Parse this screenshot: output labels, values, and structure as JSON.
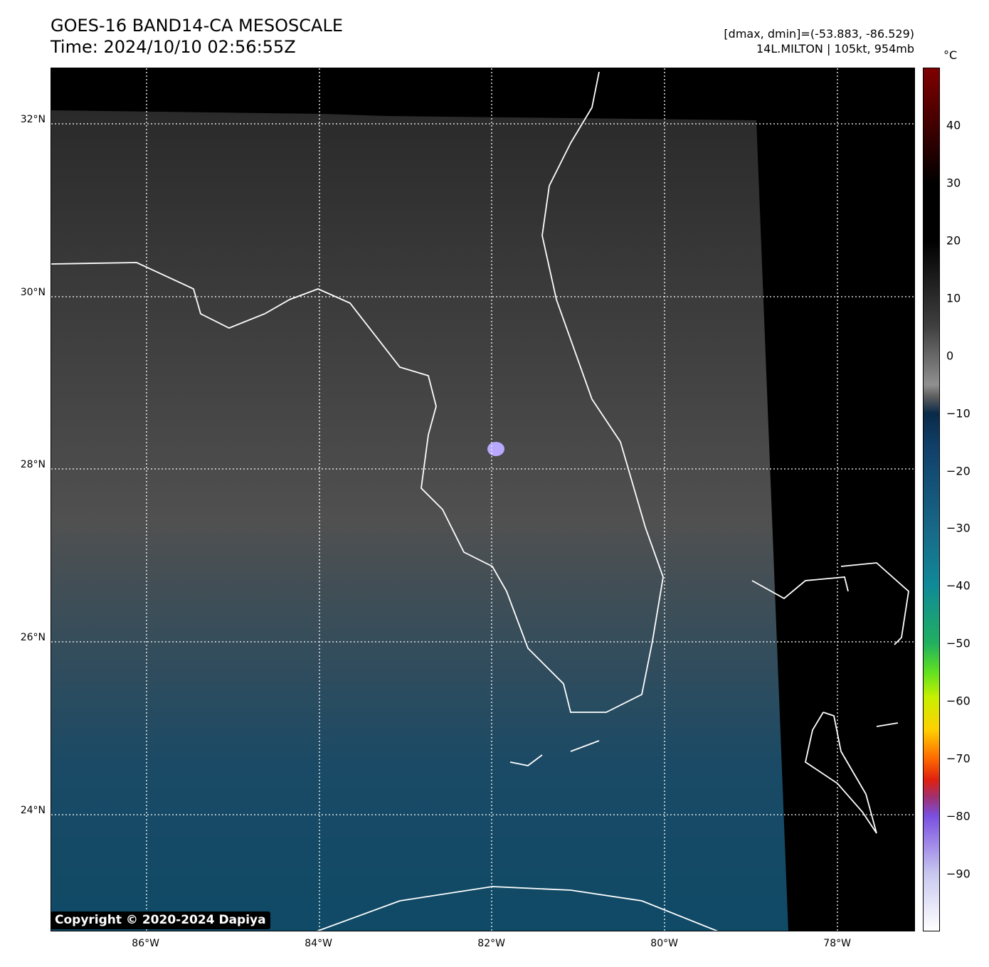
{
  "header": {
    "title": "GOES-16 BAND14-CA MESOSCALE",
    "time": "Time: 2024/10/10 02:56:55Z",
    "stats": "[dmax, dmin]=(-53.883, -86.529)",
    "storm": "14L.MILTON | 105kt, 954mb"
  },
  "colorbar": {
    "unit": "°C",
    "min": -100,
    "max": 50,
    "ticks": [
      {
        "v": 40,
        "label": "40"
      },
      {
        "v": 30,
        "label": "30"
      },
      {
        "v": 20,
        "label": "20"
      },
      {
        "v": 10,
        "label": "10"
      },
      {
        "v": 0,
        "label": "0"
      },
      {
        "v": -10,
        "label": "−10"
      },
      {
        "v": -20,
        "label": "−20"
      },
      {
        "v": -30,
        "label": "−30"
      },
      {
        "v": -40,
        "label": "−40"
      },
      {
        "v": -50,
        "label": "−50"
      },
      {
        "v": -60,
        "label": "−60"
      },
      {
        "v": -70,
        "label": "−70"
      },
      {
        "v": -80,
        "label": "−80"
      },
      {
        "v": -90,
        "label": "−90"
      }
    ]
  },
  "axes": {
    "lon_range": [
      -87.1,
      -77.1
    ],
    "lat_range": [
      22.6,
      32.6
    ],
    "lon_ticks": [
      {
        "v": -86,
        "label": "86°W"
      },
      {
        "v": -84,
        "label": "84°W"
      },
      {
        "v": -82,
        "label": "82°W"
      },
      {
        "v": -80,
        "label": "80°W"
      },
      {
        "v": -78,
        "label": "78°W"
      }
    ],
    "lat_ticks": [
      {
        "v": 32,
        "label": "32°N"
      },
      {
        "v": 30,
        "label": "30°N"
      },
      {
        "v": 28,
        "label": "28°N"
      },
      {
        "v": 26,
        "label": "26°N"
      },
      {
        "v": 24,
        "label": "24°N"
      }
    ]
  },
  "storm_center": {
    "lon": -82.0,
    "lat": 28.1
  },
  "copyright": "Copyright © 2020-2024 Dapiya"
}
